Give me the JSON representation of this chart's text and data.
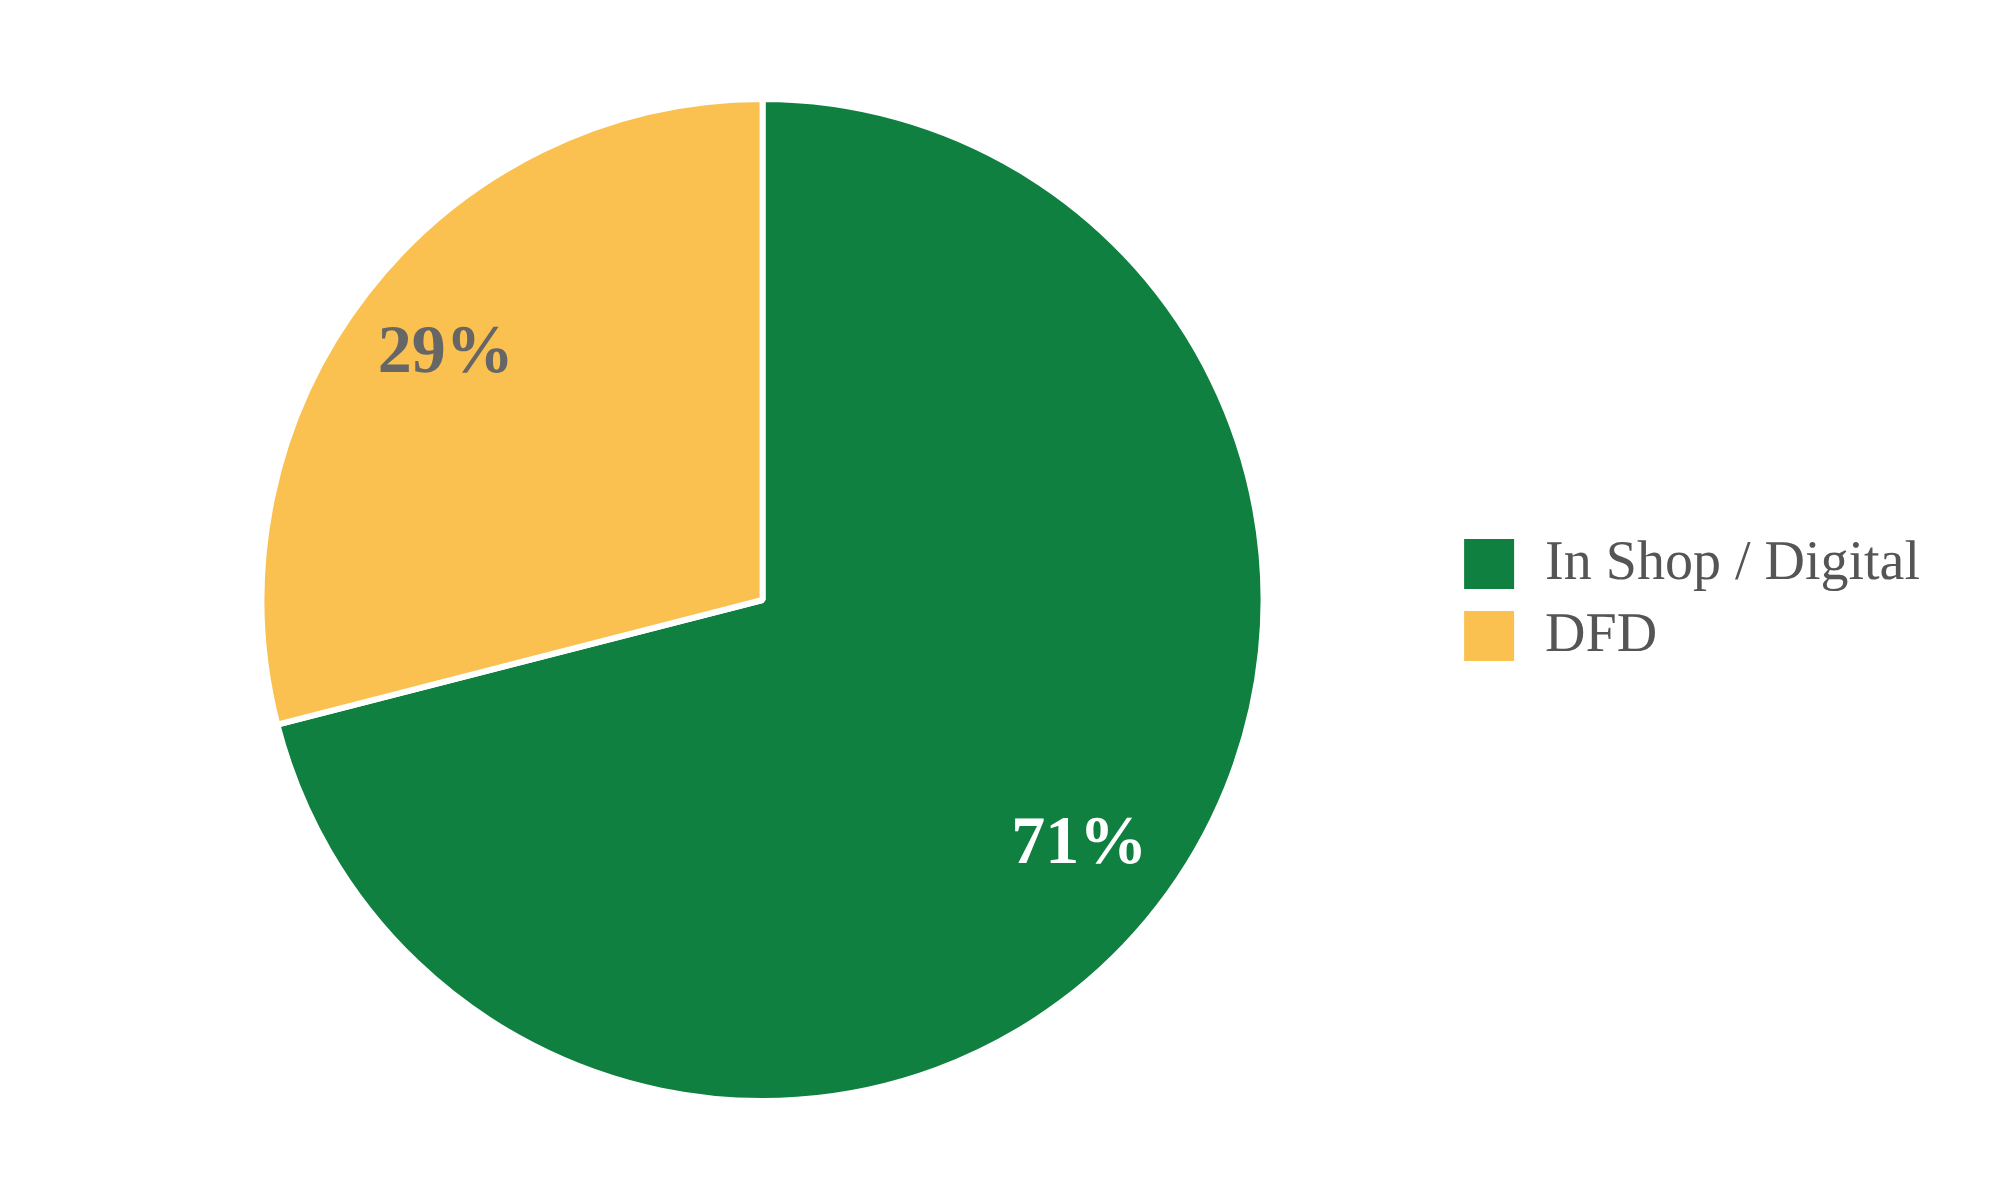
{
  "chart_data": {
    "type": "pie",
    "categories": [
      "In Shop / Digital",
      "DFD"
    ],
    "values": [
      71,
      29
    ],
    "colors": [
      "#0f8040",
      "#fac150"
    ],
    "value_labels": [
      "71%",
      "29%"
    ],
    "legend": "right"
  }
}
